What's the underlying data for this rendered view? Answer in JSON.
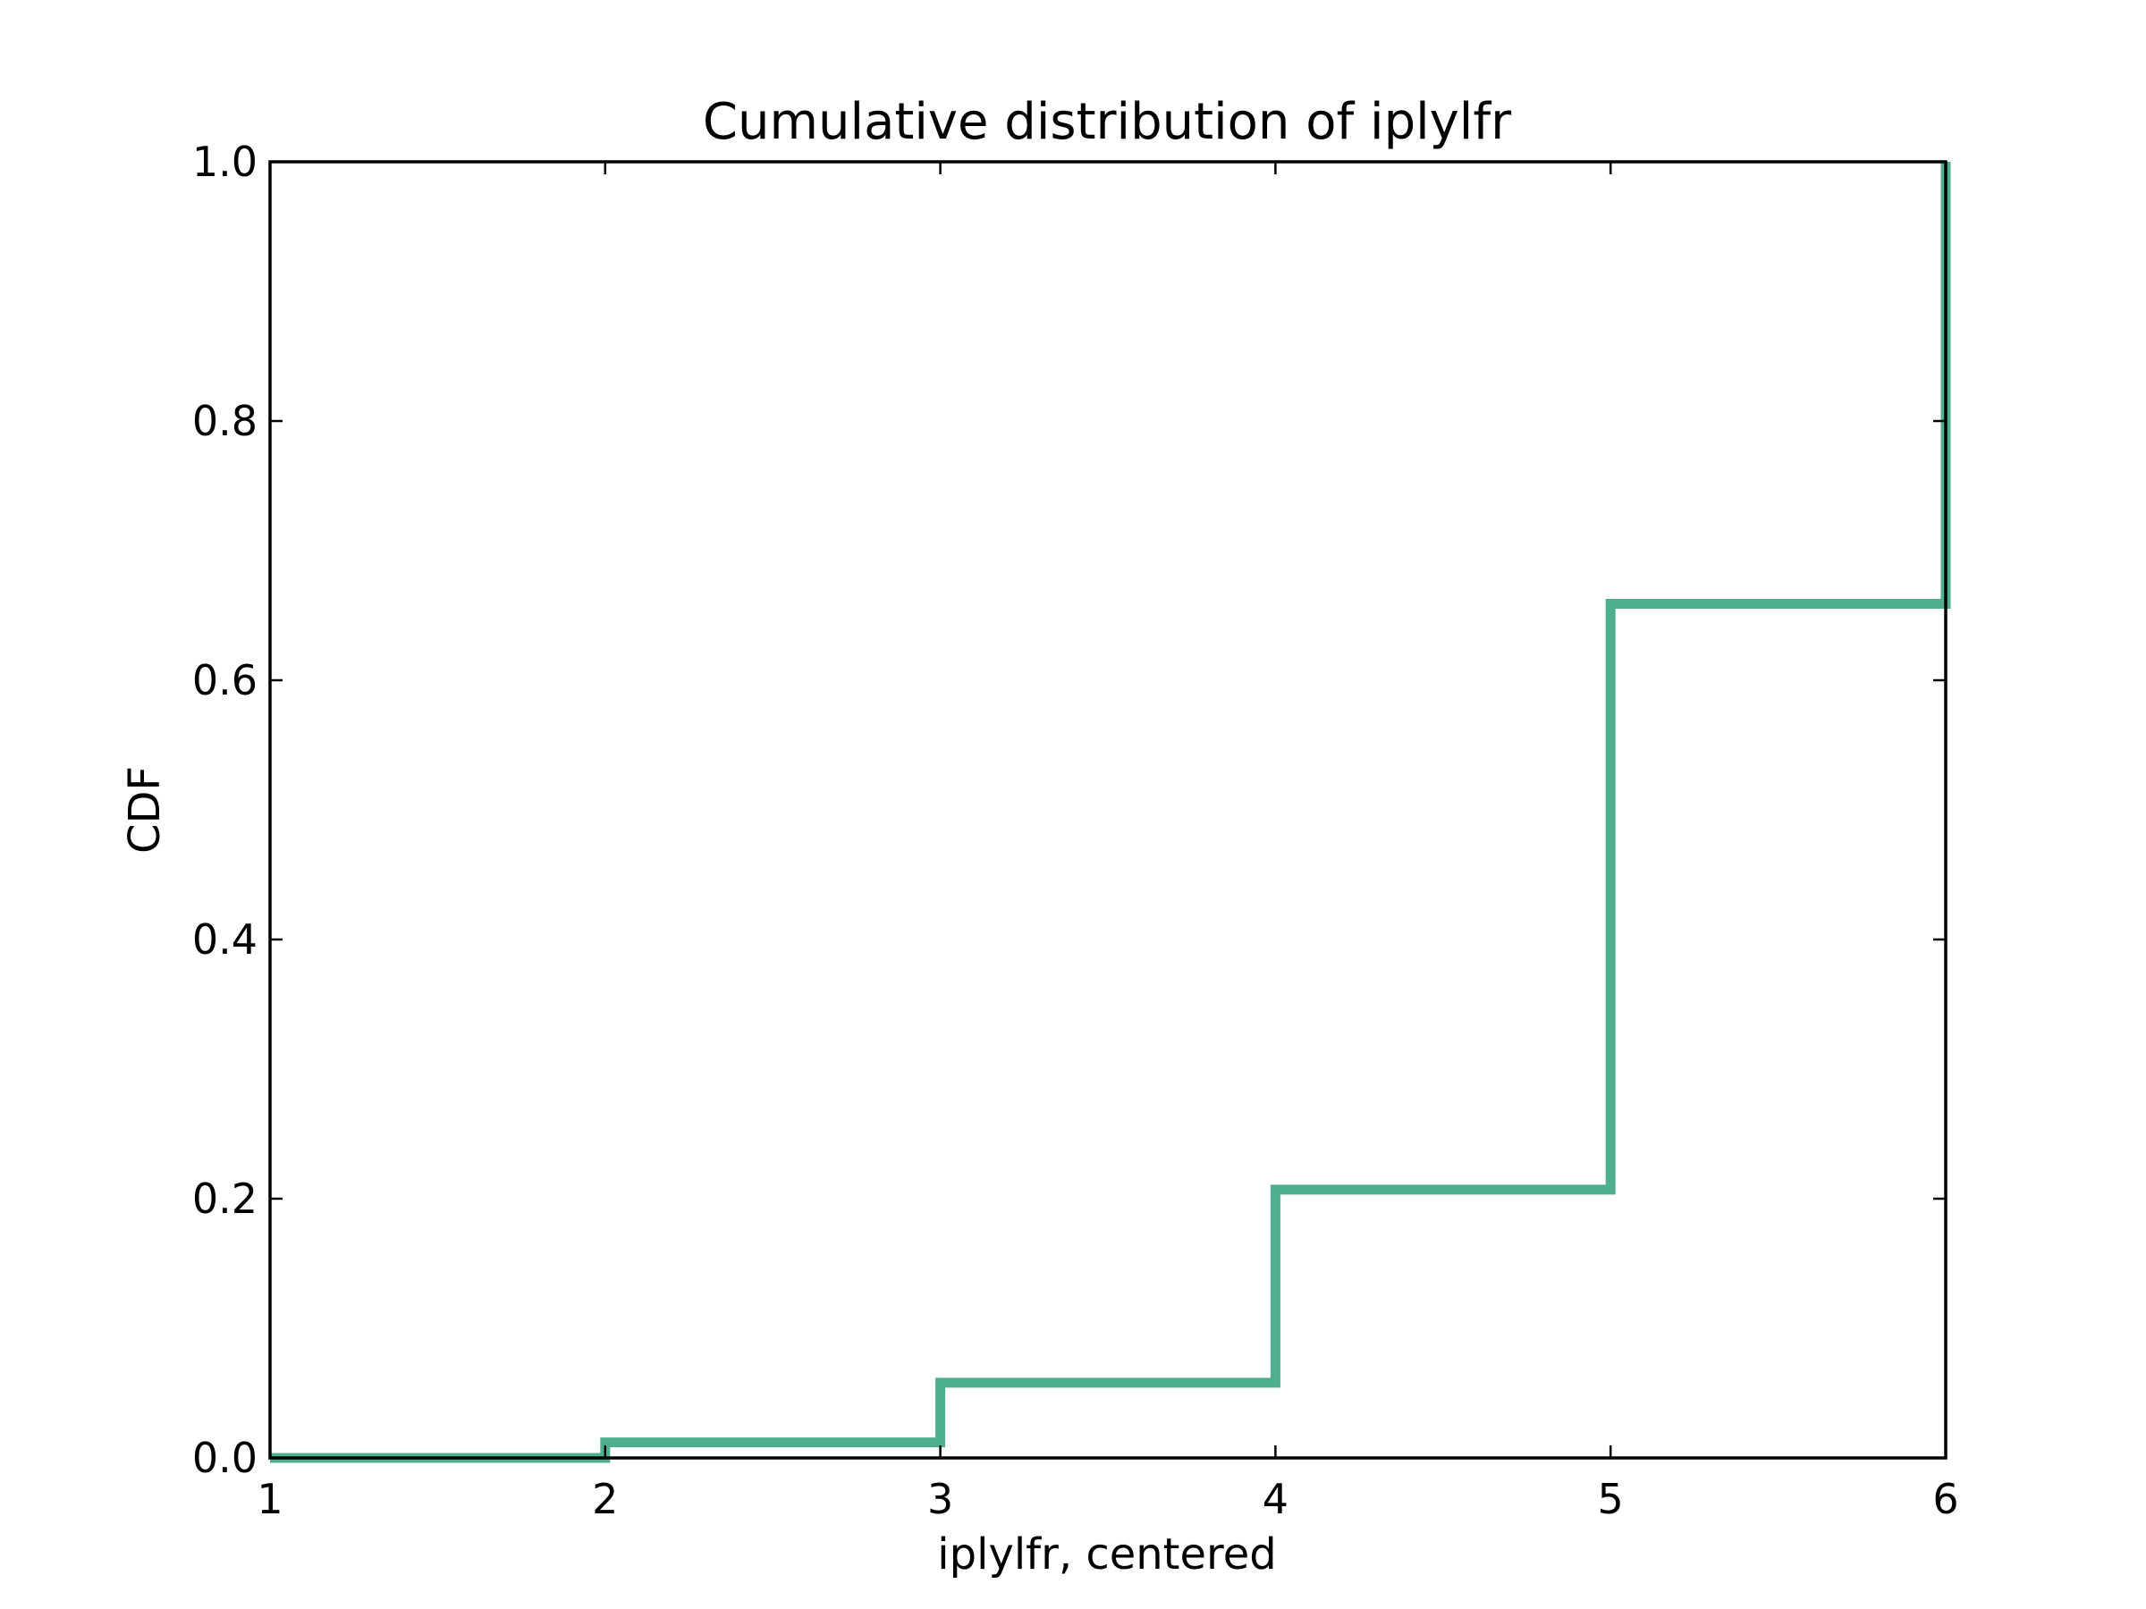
{
  "chart_data": {
    "type": "line",
    "drawstyle": "steps-post",
    "title": "Cumulative distribution of iplylfr",
    "xlabel": "iplylfr, centered",
    "ylabel": "CDF",
    "xlim": [
      1,
      6
    ],
    "ylim": [
      0.0,
      1.0
    ],
    "xticks": [
      1,
      2,
      3,
      4,
      5,
      6
    ],
    "xtick_labels": [
      "1",
      "2",
      "3",
      "4",
      "5",
      "6"
    ],
    "yticks": [
      0.0,
      0.2,
      0.4,
      0.6,
      0.8,
      1.0
    ],
    "ytick_labels": [
      "0.0",
      "0.2",
      "0.4",
      "0.6",
      "0.8",
      "1.0"
    ],
    "grid": false,
    "legend": false,
    "series": [
      {
        "color": "#4daf8c",
        "x": [
          1,
          2,
          3,
          4,
          5,
          6,
          6
        ],
        "y": [
          0.0,
          0.012,
          0.058,
          0.207,
          0.659,
          0.659,
          1.0
        ]
      }
    ]
  }
}
